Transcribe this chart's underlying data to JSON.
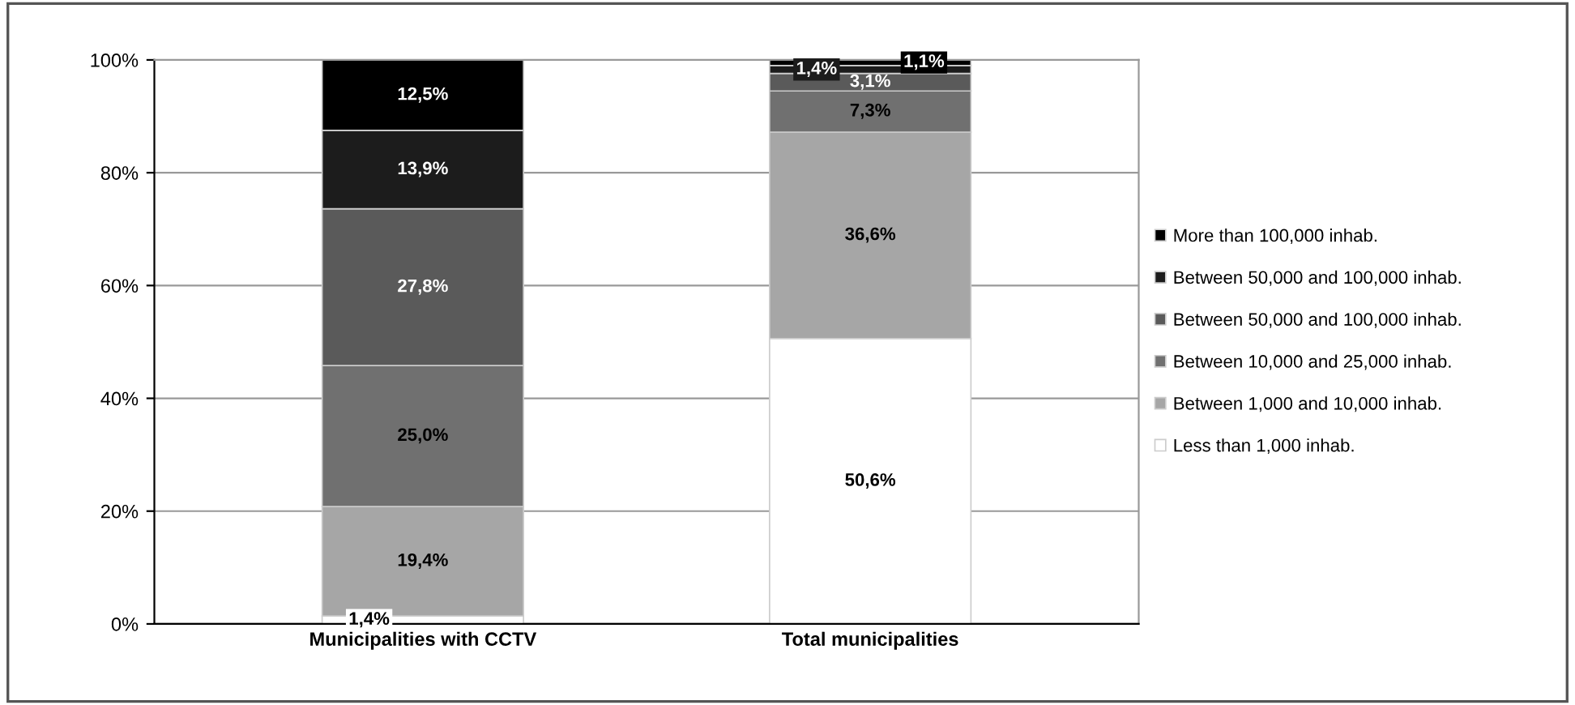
{
  "chart_data": {
    "type": "bar",
    "stacked": true,
    "categories": [
      "Municipalities with CCTV",
      "Total municipalities"
    ],
    "series": [
      {
        "name": "Less than 1,000 inhab.",
        "color": "#ffffff",
        "values": [
          1.4,
          50.6
        ],
        "value_labels": [
          "1,4%",
          "50,6%"
        ]
      },
      {
        "name": "Between 1,000 and 10,000 inhab.",
        "color": "#a6a6a6",
        "values": [
          19.4,
          36.6
        ],
        "value_labels": [
          "19,4%",
          "36,6%"
        ]
      },
      {
        "name": "Between 10,000 and 25,000 inhab.",
        "color": "#707070",
        "values": [
          25.0,
          7.3
        ],
        "value_labels": [
          "25,0%",
          "7,3%"
        ]
      },
      {
        "name": "Between 50,000 and 100,000 inhab.",
        "color": "#5a5a5a",
        "values": [
          27.8,
          3.1
        ],
        "value_labels": [
          "27,8%",
          "3,1%"
        ]
      },
      {
        "name": "Between 50,000 and 100,000 inhab.",
        "color": "#1c1c1c",
        "values": [
          13.9,
          1.4
        ],
        "value_labels": [
          "13,9%",
          "1,4%"
        ]
      },
      {
        "name": "More than 100,000 inhab.",
        "color": "#000000",
        "values": [
          12.5,
          1.1
        ],
        "value_labels": [
          "12,5%",
          "1,1%"
        ]
      }
    ],
    "ylim": [
      0,
      100
    ],
    "yticks": [
      {
        "value": 0,
        "label": "0%"
      },
      {
        "value": 20,
        "label": "20%"
      },
      {
        "value": 40,
        "label": "40%"
      },
      {
        "value": 60,
        "label": "60%"
      },
      {
        "value": 80,
        "label": "80%"
      },
      {
        "value": 100,
        "label": "100%"
      }
    ],
    "grid": "y",
    "legend": "right"
  }
}
